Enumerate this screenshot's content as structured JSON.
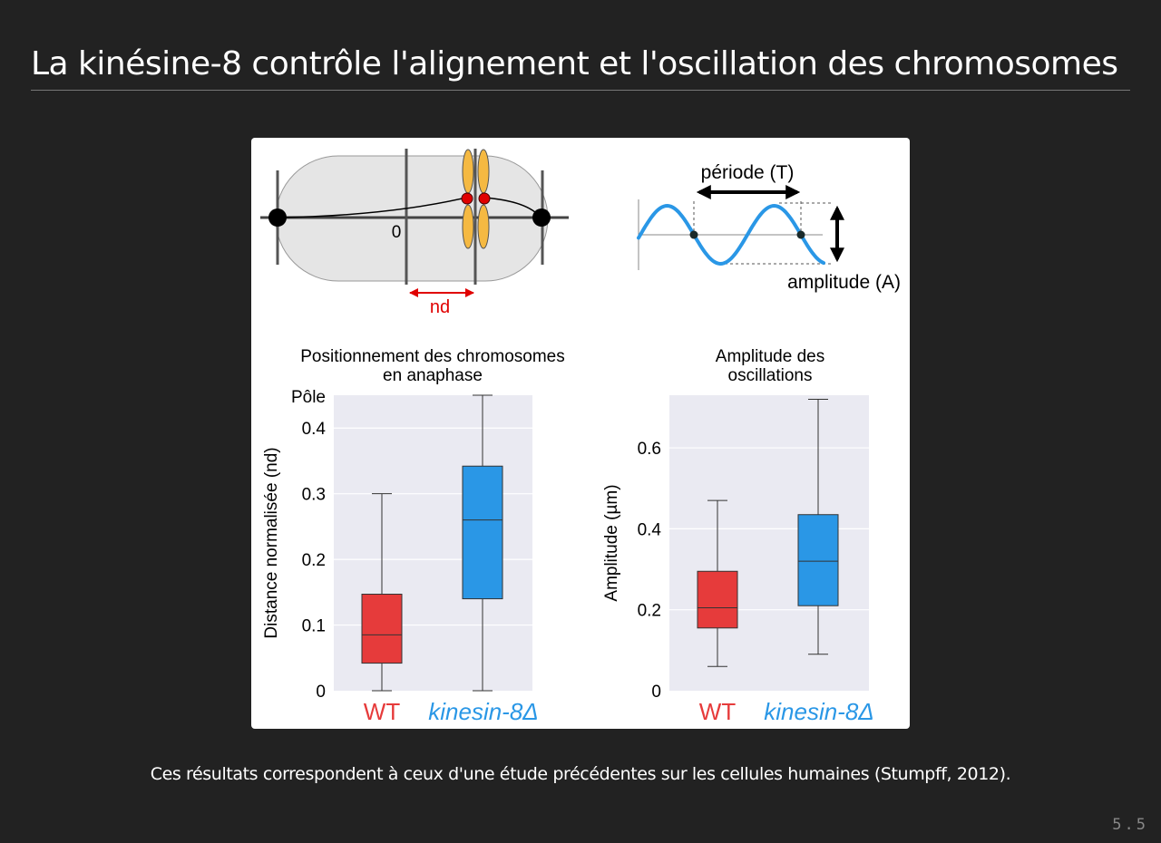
{
  "slide": {
    "title": "La kinésine-8 contrôle l'alignement et l'oscillation des chromosomes",
    "caption": "Ces résultats correspondent à ceux d'une étude précédentes sur les cellules humaines (Stumpff, 2012).",
    "slide_number": "5.5"
  },
  "schematic": {
    "zero_label": "0",
    "nd_label": "nd",
    "period_label": "période (T)",
    "amplitude_label": "amplitude (A)"
  },
  "colors": {
    "wt": "#e63b3b",
    "kinesin": "#2a97e6",
    "plot_bg": "#eaeaf2",
    "cell_fill": "#e5e5e5",
    "chromosome": "#f5b942",
    "kinetochore": "#e00000",
    "nd_arrow": "#e00000",
    "wave": "#2a97e6"
  },
  "chart_data": [
    {
      "type": "box",
      "title": "Positionnement des chromosomes\nen anaphase",
      "ylabel": "Distance normalisée (nd)",
      "ylim": [
        0,
        0.45
      ],
      "yticks": [
        0,
        0.1,
        0.2,
        0.3,
        0.4
      ],
      "top_label": "Pôle",
      "grid": true,
      "categories": [
        {
          "label": "WT",
          "italic": false
        },
        {
          "label": "kinesin-8Δ",
          "italic": true
        }
      ],
      "series": [
        {
          "name": "WT",
          "color": "#e63b3b",
          "whisker_low": 0.0,
          "q1": 0.042,
          "median": 0.085,
          "q3": 0.147,
          "whisker_high": 0.3
        },
        {
          "name": "kinesin-8Δ",
          "color": "#2a97e6",
          "whisker_low": 0.0,
          "q1": 0.14,
          "median": 0.26,
          "q3": 0.342,
          "whisker_high": 0.45
        }
      ]
    },
    {
      "type": "box",
      "title": "Amplitude des\noscillations",
      "ylabel": "Amplitude (µm)",
      "ylim": [
        0,
        0.73
      ],
      "yticks": [
        0,
        0.2,
        0.4,
        0.6
      ],
      "grid": true,
      "categories": [
        {
          "label": "WT",
          "italic": false
        },
        {
          "label": "kinesin-8Δ",
          "italic": true
        }
      ],
      "series": [
        {
          "name": "WT",
          "color": "#e63b3b",
          "whisker_low": 0.06,
          "q1": 0.155,
          "median": 0.205,
          "q3": 0.295,
          "whisker_high": 0.47
        },
        {
          "name": "kinesin-8Δ",
          "color": "#2a97e6",
          "whisker_low": 0.09,
          "q1": 0.21,
          "median": 0.32,
          "q3": 0.435,
          "whisker_high": 0.72
        }
      ]
    }
  ]
}
